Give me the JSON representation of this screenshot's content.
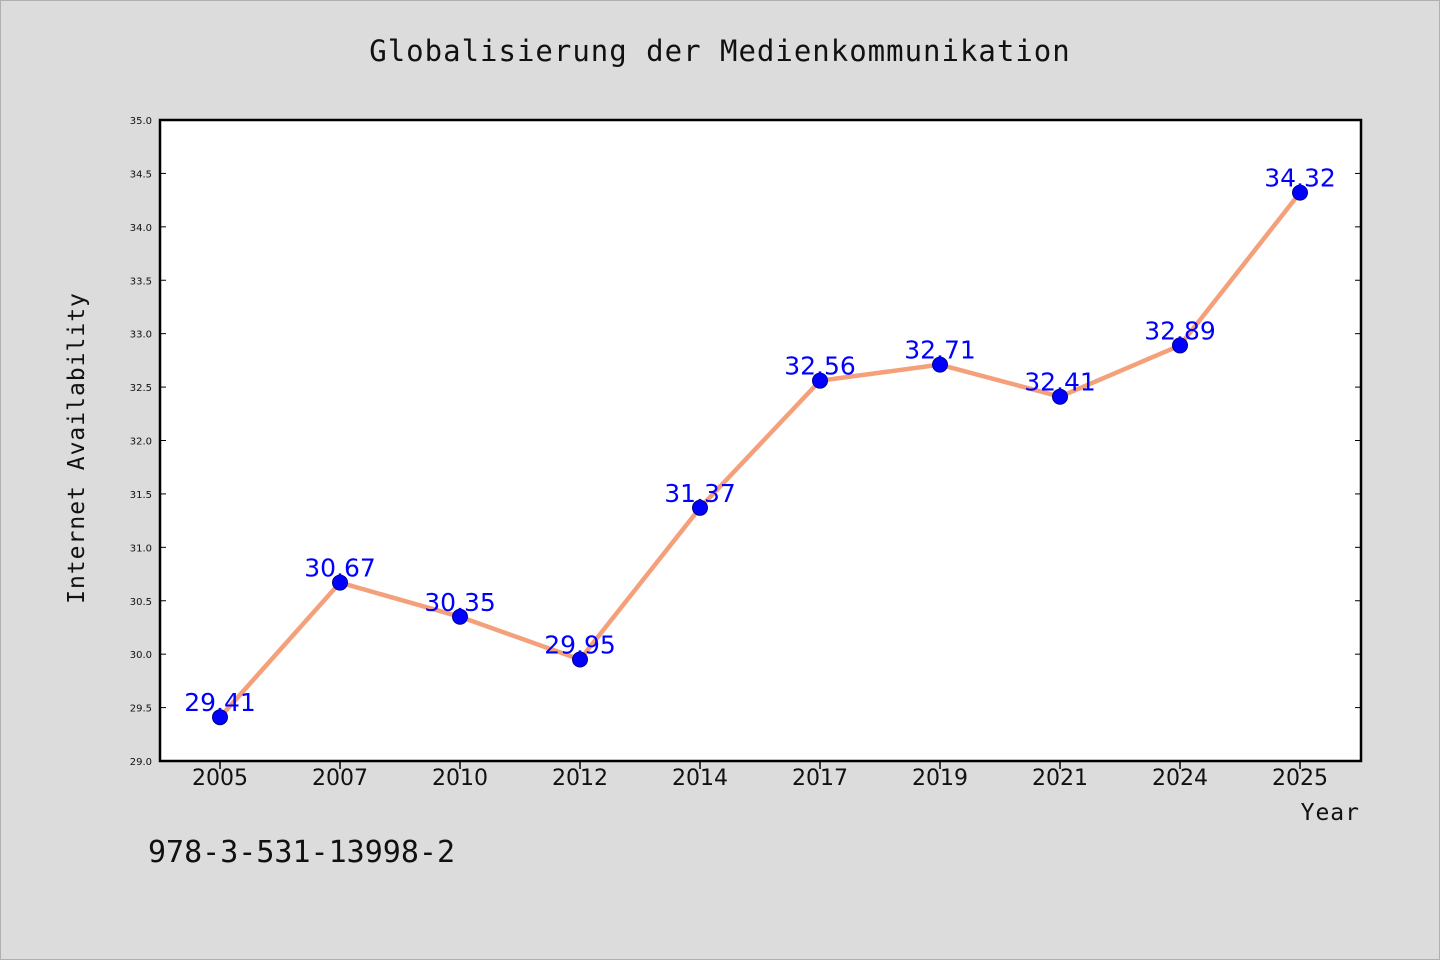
{
  "title": "Globalisierung der Medienkommunikation",
  "isbn": "978-3-531-13998-2",
  "chart_data": {
    "type": "line",
    "title": "Globalisierung der Medienkommunikation",
    "xlabel": "Year",
    "ylabel": "Internet Availability",
    "categories": [
      "2005",
      "2007",
      "2010",
      "2012",
      "2014",
      "2017",
      "2019",
      "2021",
      "2024",
      "2025"
    ],
    "series": [
      {
        "values": [
          29.41,
          30.67,
          30.35,
          29.95,
          31.37,
          32.56,
          32.71,
          32.41,
          32.89,
          34.32
        ],
        "line_color": "#f4a07a",
        "marker_color": "#0000ff"
      }
    ],
    "data_labels": [
      "29.41",
      "30.67",
      "30.35",
      "29.95",
      "31.37",
      "32.56",
      "32.71",
      "32.41",
      "32.89",
      "34.32"
    ],
    "ylim": [
      29.0,
      35.0
    ],
    "yticks": [
      "29.0",
      "29.5",
      "30.0",
      "30.5",
      "31.0",
      "31.5",
      "32.0",
      "32.5",
      "33.0",
      "33.5",
      "34.0",
      "34.5",
      "35.0"
    ],
    "grid": false,
    "legend": "none"
  }
}
